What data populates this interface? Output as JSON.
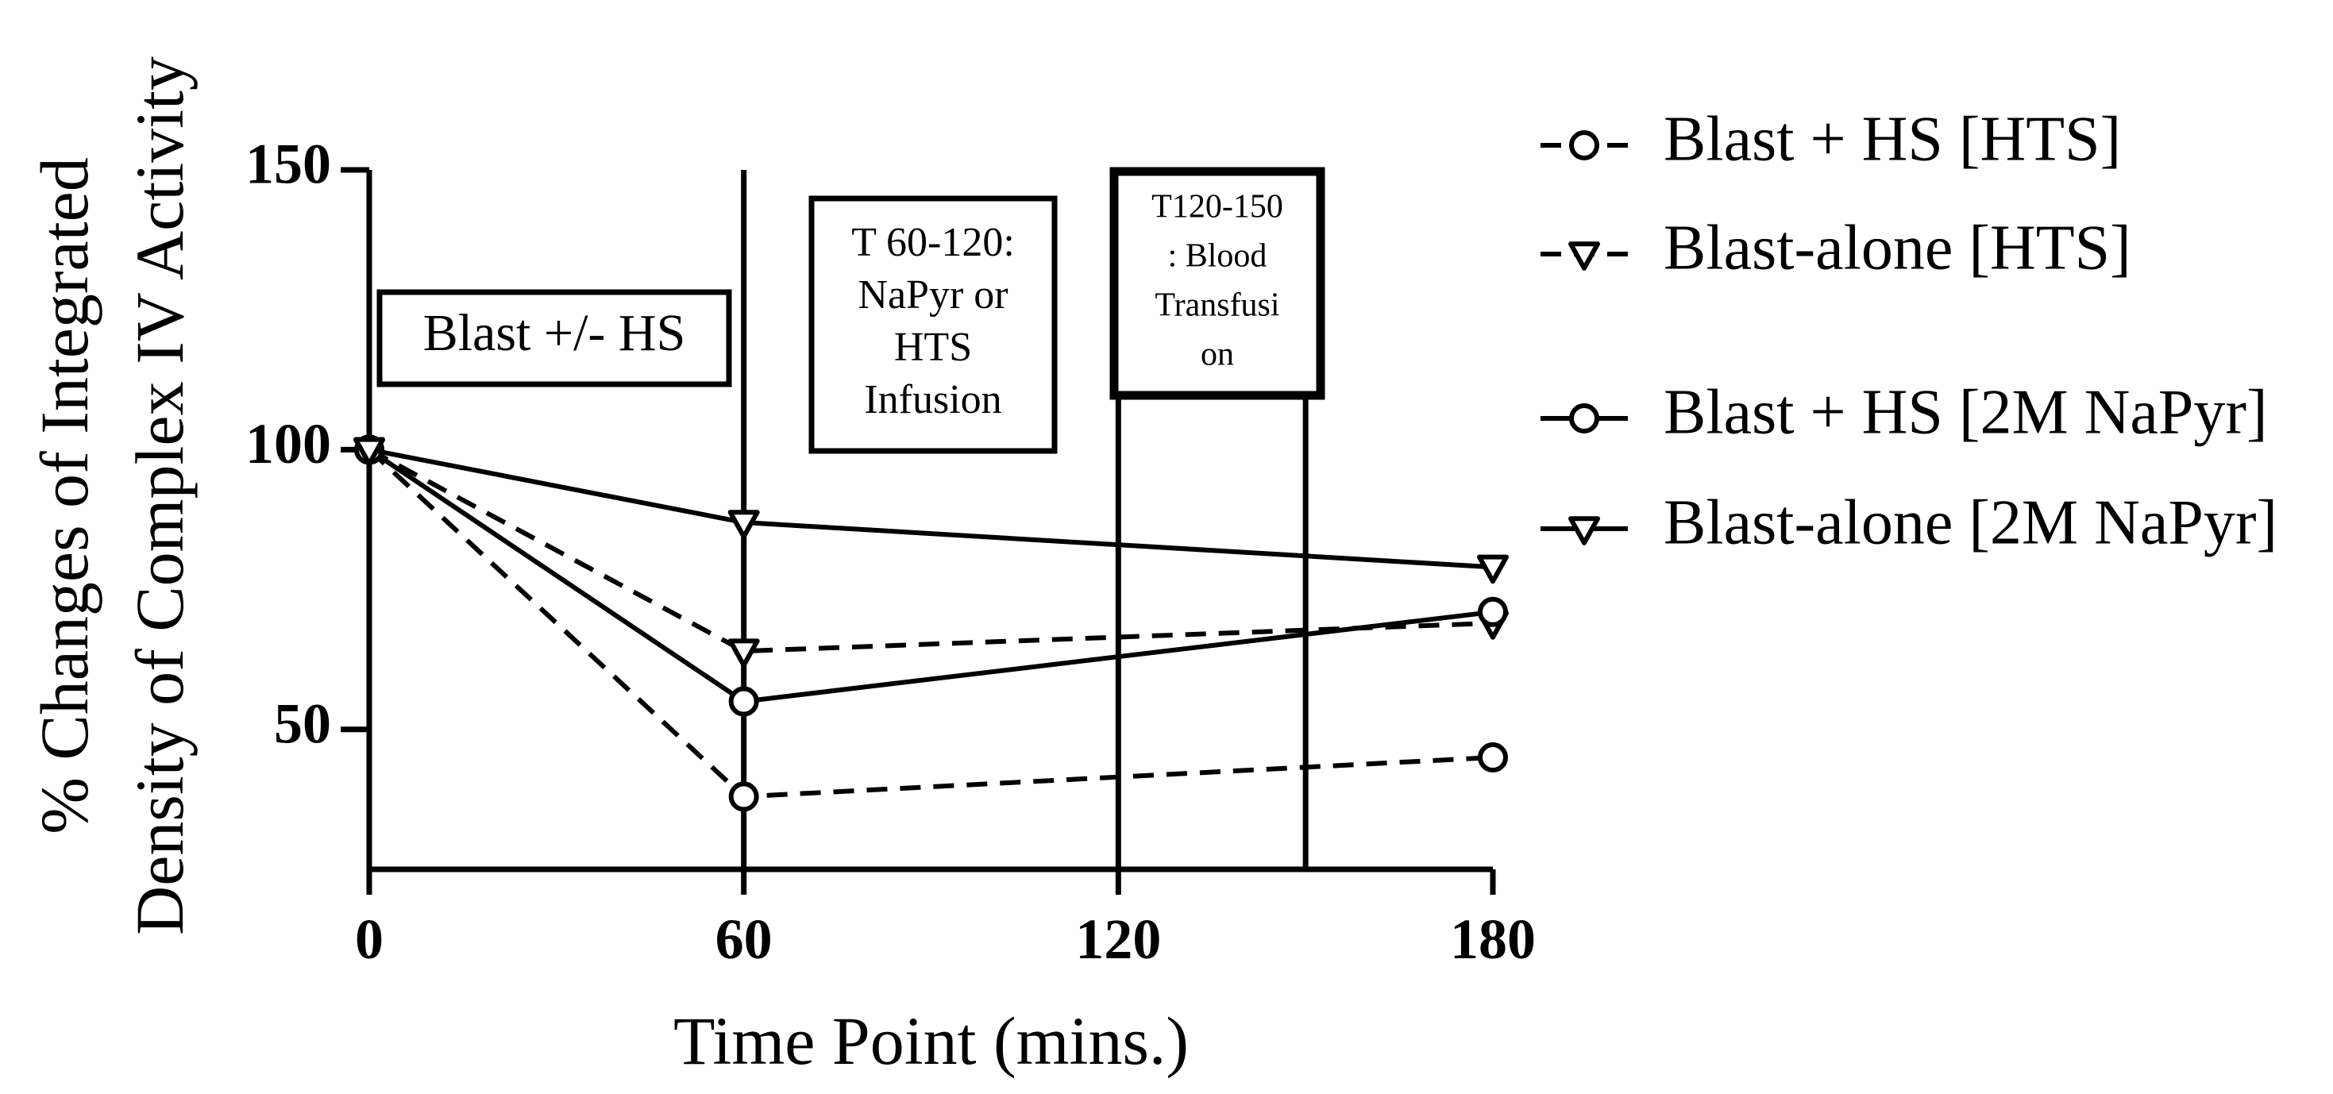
{
  "chart_data": {
    "type": "line",
    "title": "",
    "xlabel": "Time Point (mins.)",
    "ylabel": [
      "% Changes of Integrated",
      "Density of Complex IV Activity"
    ],
    "x": [
      0,
      60,
      180
    ],
    "xticks": [
      "0",
      "60",
      "120",
      "180"
    ],
    "xlim": [
      0,
      180
    ],
    "yticks": [
      "50",
      "100",
      "150"
    ],
    "ylim": [
      25,
      150
    ],
    "grid": false,
    "legend_position": "right",
    "vertical_markers": [
      0,
      60,
      120,
      150
    ],
    "series": [
      {
        "name": "Blast + HS [HTS]",
        "values": [
          100,
          38,
          45
        ],
        "line": "dashed",
        "marker": "circle"
      },
      {
        "name": "Blast-alone [HTS]",
        "values": [
          100,
          64,
          69
        ],
        "line": "dashed",
        "marker": "triangle-down"
      },
      {
        "name": "Blast + HS [2M NaPyr]",
        "values": [
          100,
          55,
          71
        ],
        "line": "solid",
        "marker": "circle"
      },
      {
        "name": "Blast-alone [2M NaPyr]",
        "values": [
          100,
          87,
          79
        ],
        "line": "solid",
        "marker": "triangle-down"
      }
    ],
    "annotations": [
      {
        "lines": [
          "Blast +/- HS"
        ]
      },
      {
        "lines": [
          "T 60-120:",
          "NaPyr or",
          "HTS",
          "Infusion"
        ]
      },
      {
        "lines": [
          "T120-150",
          ": Blood",
          "Transfusi",
          "on"
        ]
      }
    ]
  }
}
